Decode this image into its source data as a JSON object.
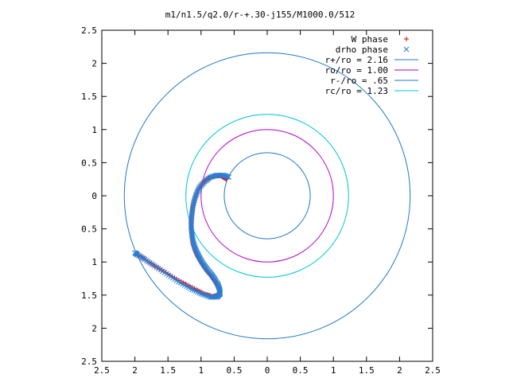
{
  "chart_data": {
    "type": "scatter",
    "title": "m1/n1.5/q2.0/r-+.30-j155/M1000.0/512",
    "xlim": [
      -2.5,
      2.5
    ],
    "ylim": [
      -2.5,
      2.5
    ],
    "x_ticks": [
      -2.5,
      -2,
      -1.5,
      -1,
      -0.5,
      0,
      0.5,
      1,
      1.5,
      2,
      2.5
    ],
    "y_ticks": [
      -2.5,
      -2,
      -1.5,
      -1,
      -0.5,
      0,
      0.5,
      1,
      1.5,
      2,
      2.5
    ],
    "x_tick_labels": [
      "2.5",
      "2",
      "1.5",
      "1",
      "0.5",
      "0",
      "0.5",
      "1",
      "1.5",
      "2",
      "2.5"
    ],
    "y_tick_labels": [
      "2.5",
      "2",
      "1.5",
      "1",
      "0.5",
      "0",
      "0.5",
      "1",
      "1.5",
      "2",
      "2.5"
    ],
    "legend_position": "top-right",
    "circles": [
      {
        "name": "r+/ro = 2.16",
        "radius": 2.16,
        "color": "#1f77c9"
      },
      {
        "name": "ro/ro = 1.00",
        "radius": 1.0,
        "color": "#b000c8"
      },
      {
        "name": "r-/ro = .65",
        "radius": 0.65,
        "color": "#1f77c9"
      },
      {
        "name": "rc/ro = 1.23",
        "radius": 1.23,
        "color": "#00c8d8"
      }
    ],
    "point_series": [
      {
        "name": "W phase",
        "marker": "+",
        "color": "#e00000",
        "x": [
          -0.62,
          -0.7,
          -0.8,
          -0.9,
          -0.98,
          -1.05,
          -1.1,
          -1.13,
          -1.15,
          -1.15,
          -1.14,
          -1.12,
          -1.09,
          -1.05,
          -1.0,
          -0.95,
          -0.9,
          -0.84,
          -0.78,
          -0.74,
          -0.72,
          -0.74,
          -0.82,
          -0.95,
          -1.1,
          -1.3,
          -1.5,
          -1.7,
          -1.86,
          -1.98
        ],
        "y": [
          0.25,
          0.3,
          0.3,
          0.26,
          0.18,
          0.08,
          -0.05,
          -0.2,
          -0.35,
          -0.5,
          -0.62,
          -0.73,
          -0.83,
          -0.92,
          -1.0,
          -1.08,
          -1.15,
          -1.22,
          -1.3,
          -1.38,
          -1.45,
          -1.5,
          -1.52,
          -1.48,
          -1.4,
          -1.3,
          -1.18,
          -1.06,
          -0.95,
          -0.88
        ]
      },
      {
        "name": "drho phase",
        "marker": "x",
        "color": "#2a7fd4",
        "x": [
          -0.58,
          -0.66,
          -0.76,
          -0.86,
          -0.95,
          -1.03,
          -1.08,
          -1.12,
          -1.14,
          -1.15,
          -1.14,
          -1.12,
          -1.09,
          -1.05,
          -1.01,
          -0.96,
          -0.91,
          -0.85,
          -0.8,
          -0.75,
          -0.72,
          -0.71,
          -0.76,
          -0.86,
          -1.0,
          -1.16,
          -1.34,
          -1.52,
          -1.7,
          -1.85,
          -1.96,
          -2.0
        ],
        "y": [
          0.28,
          0.31,
          0.31,
          0.28,
          0.21,
          0.12,
          0.0,
          -0.14,
          -0.29,
          -0.44,
          -0.57,
          -0.69,
          -0.79,
          -0.88,
          -0.96,
          -1.04,
          -1.11,
          -1.18,
          -1.25,
          -1.33,
          -1.41,
          -1.48,
          -1.53,
          -1.53,
          -1.48,
          -1.4,
          -1.3,
          -1.18,
          -1.06,
          -0.96,
          -0.89,
          -0.86
        ]
      }
    ]
  }
}
